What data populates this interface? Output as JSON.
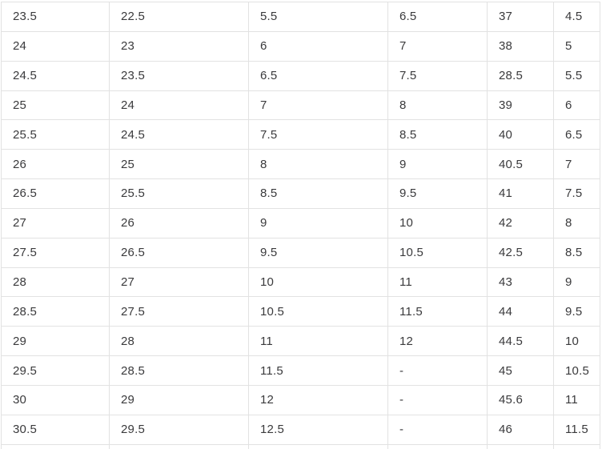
{
  "colors": {
    "background": "#ffffff",
    "border": "#e2e2e2",
    "text": "#3a3a3c"
  },
  "chart_data": {
    "type": "table",
    "title": "",
    "notes": "size conversion table, no headers visible (cropped viewport)",
    "rows": [
      [
        "23.5",
        "22.5",
        "5.5",
        "6.5",
        "37",
        "4.5"
      ],
      [
        "24",
        "23",
        "6",
        "7",
        "38",
        "5"
      ],
      [
        "24.5",
        "23.5",
        "6.5",
        "7.5",
        "28.5",
        "5.5"
      ],
      [
        "25",
        "24",
        "7",
        "8",
        "39",
        "6"
      ],
      [
        "25.5",
        "24.5",
        "7.5",
        "8.5",
        "40",
        "6.5"
      ],
      [
        "26",
        "25",
        "8",
        "9",
        "40.5",
        "7"
      ],
      [
        "26.5",
        "25.5",
        "8.5",
        "9.5",
        "41",
        "7.5"
      ],
      [
        "27",
        "26",
        "9",
        "10",
        "42",
        "8"
      ],
      [
        "27.5",
        "26.5",
        "9.5",
        "10.5",
        "42.5",
        "8.5"
      ],
      [
        "28",
        "27",
        "10",
        "11",
        "43",
        "9"
      ],
      [
        "28.5",
        "27.5",
        "10.5",
        "11.5",
        "44",
        "9.5"
      ],
      [
        "29",
        "28",
        "11",
        "12",
        "44.5",
        "10"
      ],
      [
        "29.5",
        "28.5",
        "11.5",
        "-",
        "45",
        "10.5"
      ],
      [
        "30",
        "29",
        "12",
        "-",
        "45.6",
        "11"
      ],
      [
        "30.5",
        "29.5",
        "12.5",
        "-",
        "46",
        "11.5"
      ]
    ]
  }
}
